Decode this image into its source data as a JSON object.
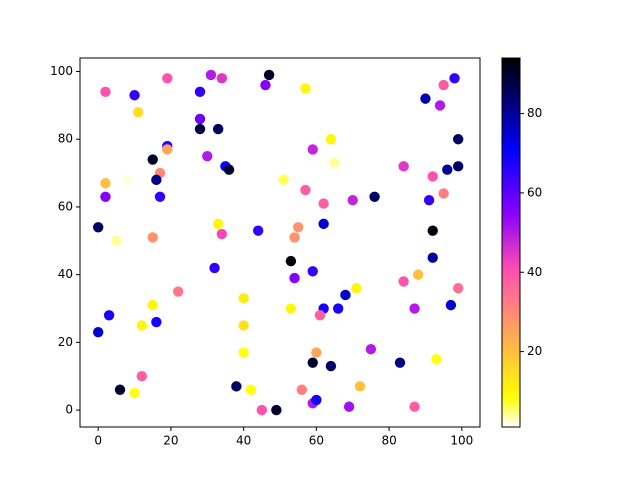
{
  "chart_data": {
    "type": "scatter",
    "colormap": "gnuplot2_r",
    "x": [
      2,
      10,
      11,
      19,
      28,
      31,
      34,
      47,
      46,
      57,
      95,
      98,
      90,
      94,
      28,
      28,
      33,
      19,
      19,
      15,
      30,
      35,
      36,
      64,
      59,
      65,
      99,
      99,
      96,
      84,
      92,
      2,
      8,
      17,
      16,
      17,
      2,
      51,
      57,
      62,
      70,
      76,
      95,
      91,
      0,
      5,
      15,
      33,
      34,
      44,
      55,
      54,
      62,
      92,
      53,
      54,
      59,
      92,
      32,
      22,
      15,
      3,
      12,
      16,
      40,
      40,
      53,
      62,
      66,
      68,
      71,
      84,
      88,
      87,
      97,
      99,
      61,
      0,
      40,
      60,
      59,
      64,
      75,
      83,
      93,
      12,
      6,
      10,
      38,
      42,
      45,
      49,
      56,
      59,
      60,
      69,
      72,
      87
    ],
    "y": [
      94,
      93,
      88,
      98,
      94,
      99,
      98,
      99,
      96,
      95,
      96,
      98,
      92,
      90,
      86,
      83,
      83,
      78,
      77,
      74,
      75,
      72,
      71,
      80,
      77,
      73,
      80,
      72,
      71,
      72,
      69,
      67,
      68,
      70,
      68,
      63,
      63,
      68,
      65,
      61,
      62,
      63,
      64,
      62,
      54,
      50,
      51,
      55,
      52,
      53,
      54,
      51,
      55,
      53,
      44,
      39,
      41,
      45,
      42,
      35,
      31,
      28,
      25,
      26,
      33,
      25,
      30,
      30,
      30,
      34,
      36,
      38,
      40,
      30,
      31,
      36,
      28,
      23,
      17,
      17,
      14,
      13,
      18,
      14,
      15,
      10,
      6,
      5,
      7,
      6,
      0,
      0,
      6,
      2,
      3,
      1,
      7,
      1
    ],
    "c": [
      40,
      65,
      15,
      40,
      65,
      50,
      45,
      90,
      55,
      10,
      38,
      65,
      78,
      50,
      58,
      88,
      85,
      65,
      25,
      90,
      50,
      70,
      90,
      10,
      48,
      4,
      85,
      85,
      80,
      45,
      40,
      20,
      2,
      30,
      82,
      65,
      55,
      6,
      38,
      38,
      48,
      85,
      32,
      65,
      85,
      4,
      28,
      10,
      42,
      65,
      28,
      28,
      75,
      93,
      93,
      55,
      65,
      80,
      65,
      33,
      10,
      68,
      10,
      68,
      12,
      14,
      10,
      68,
      68,
      75,
      10,
      40,
      20,
      50,
      75,
      35,
      38,
      75,
      8,
      25,
      90,
      85,
      50,
      82,
      8,
      38,
      90,
      8,
      85,
      8,
      40,
      90,
      32,
      50,
      68,
      52,
      20,
      38
    ],
    "xlim": [
      -5,
      105
    ],
    "ylim": [
      -5,
      104
    ],
    "clim": [
      1,
      94
    ],
    "xticks": [
      0,
      20,
      40,
      60,
      80,
      100
    ],
    "yticks": [
      0,
      20,
      40,
      60,
      80,
      100
    ],
    "cticks": [
      20,
      40,
      60,
      80
    ]
  }
}
